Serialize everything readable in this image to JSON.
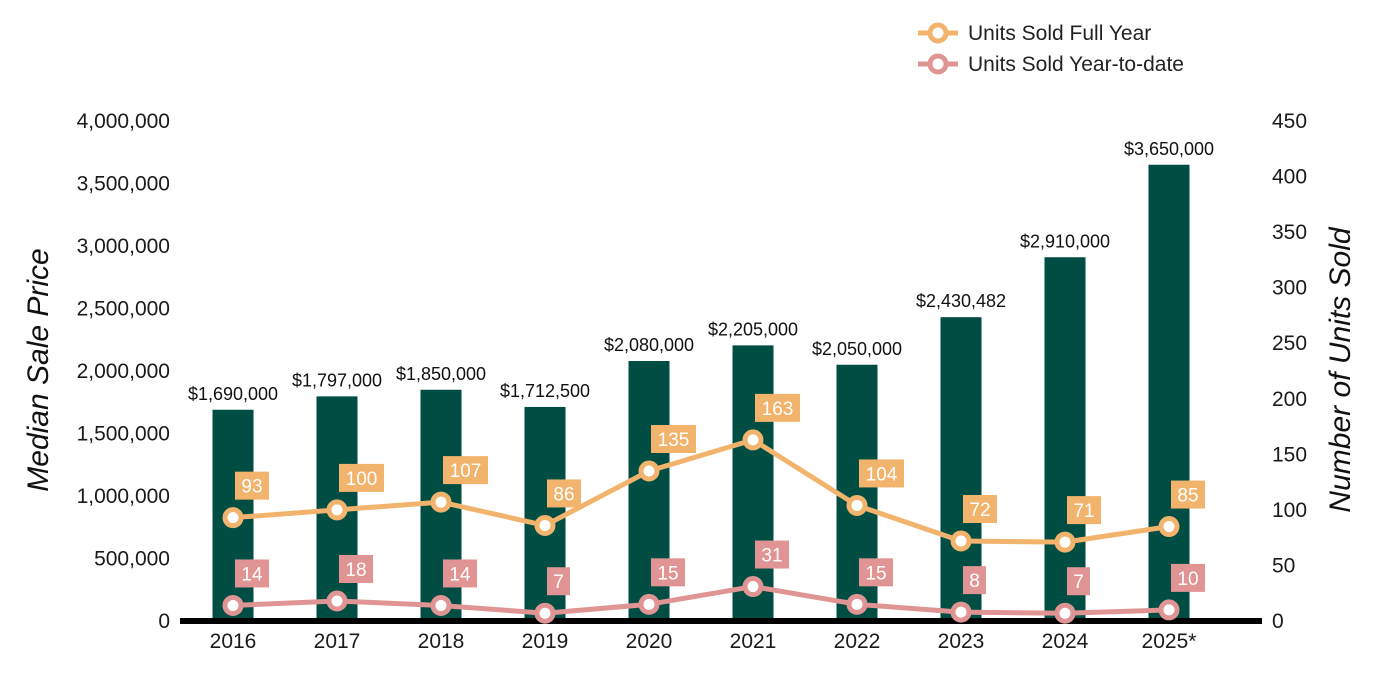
{
  "chart_data": {
    "type": "bar",
    "categories": [
      "2016",
      "2017",
      "2018",
      "2019",
      "2020",
      "2021",
      "2022",
      "2023",
      "2024",
      "2025*"
    ],
    "bar_series": {
      "name": "Median Sale Price",
      "values": [
        1690000,
        1797000,
        1850000,
        1712500,
        2080000,
        2205000,
        2050000,
        2430482,
        2910000,
        3650000
      ],
      "labels": [
        "$1,690,000",
        "$1,797,000",
        "$1,850,000",
        "$1,712,500",
        "$2,080,000",
        "$2,205,000",
        "$2,050,000",
        "$2,430,482",
        "$2,910,000",
        "$3,650,000"
      ],
      "color": "#004D43"
    },
    "line_series": [
      {
        "name": "Units Sold Full Year",
        "values": [
          93,
          100,
          107,
          86,
          135,
          163,
          104,
          72,
          71,
          85
        ],
        "color": "#F2B46D"
      },
      {
        "name": "Units Sold Year-to-date",
        "values": [
          14,
          18,
          14,
          7,
          15,
          31,
          15,
          8,
          7,
          10
        ],
        "color": "#E09594"
      }
    ],
    "y_left": {
      "label": "Median Sale Price",
      "ylim": [
        0,
        4000000
      ],
      "ticks": [
        "4,000,000",
        "3,500,000",
        "3,000,000",
        "2,500,000",
        "2,000,000",
        "1,500,000",
        "1,000,000",
        "500,000",
        "0"
      ],
      "tick_values": [
        4000000,
        3500000,
        3000000,
        2500000,
        2000000,
        1500000,
        1000000,
        500000,
        0
      ]
    },
    "y_right": {
      "label": "Number of Units Sold",
      "ylim": [
        0,
        450
      ],
      "ticks": [
        "450",
        "400",
        "350",
        "300",
        "250",
        "200",
        "150",
        "100",
        "50",
        "0"
      ],
      "tick_values": [
        450,
        400,
        350,
        300,
        250,
        200,
        150,
        100,
        50,
        0
      ]
    },
    "legend_position": "top-right",
    "grid": false
  }
}
